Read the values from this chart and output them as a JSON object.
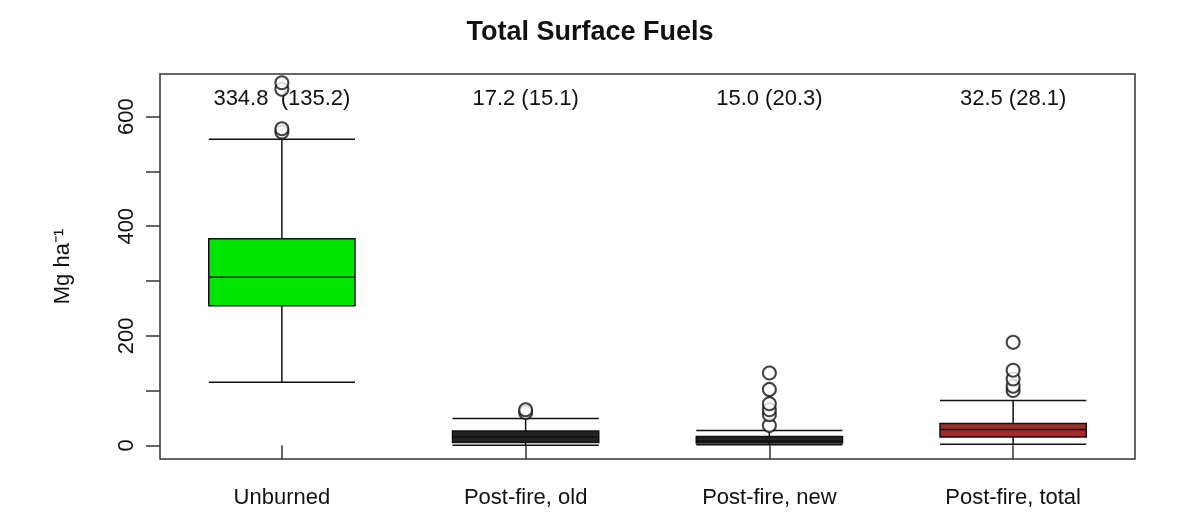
{
  "chart_data": {
    "type": "box",
    "title": "Total Surface Fuels",
    "ylabel": "Mg ha⁻¹",
    "categories": [
      "Unburned",
      "Post-fire, old",
      "Post-fire, new",
      "Post-fire, total"
    ],
    "colors": [
      "#00e600",
      "#222222",
      "#222222",
      "#a52a2a"
    ],
    "boxes": [
      {
        "low": 115,
        "q1": 255,
        "median": 307,
        "q3": 377,
        "high": 559,
        "outliers": [
          572,
          578,
          650,
          662
        ]
      },
      {
        "low": 0,
        "q1": 5,
        "median": 15,
        "q3": 26,
        "high": 49,
        "outliers": [
          60,
          65
        ]
      },
      {
        "low": 1,
        "q1": 4,
        "median": 8,
        "q3": 16,
        "high": 27,
        "outliers": [
          36,
          56,
          65,
          76,
          102,
          132
        ]
      },
      {
        "low": 2,
        "q1": 15,
        "median": 29,
        "q3": 40,
        "high": 82,
        "outliers": [
          100,
          108,
          121,
          137,
          188
        ]
      }
    ],
    "annotations": [
      "334.8  (135.2)",
      "17.2 (15.1)",
      "15.0 (20.3)",
      "32.5 (28.1)"
    ],
    "ylim": [
      -25,
      678
    ],
    "yticks": [
      0,
      {
        "value": 100,
        "label": null
      },
      200,
      {
        "value": 300,
        "label": null
      },
      400,
      {
        "value": 500,
        "label": null
      },
      600
    ],
    "marker": "circle",
    "grid": false
  }
}
